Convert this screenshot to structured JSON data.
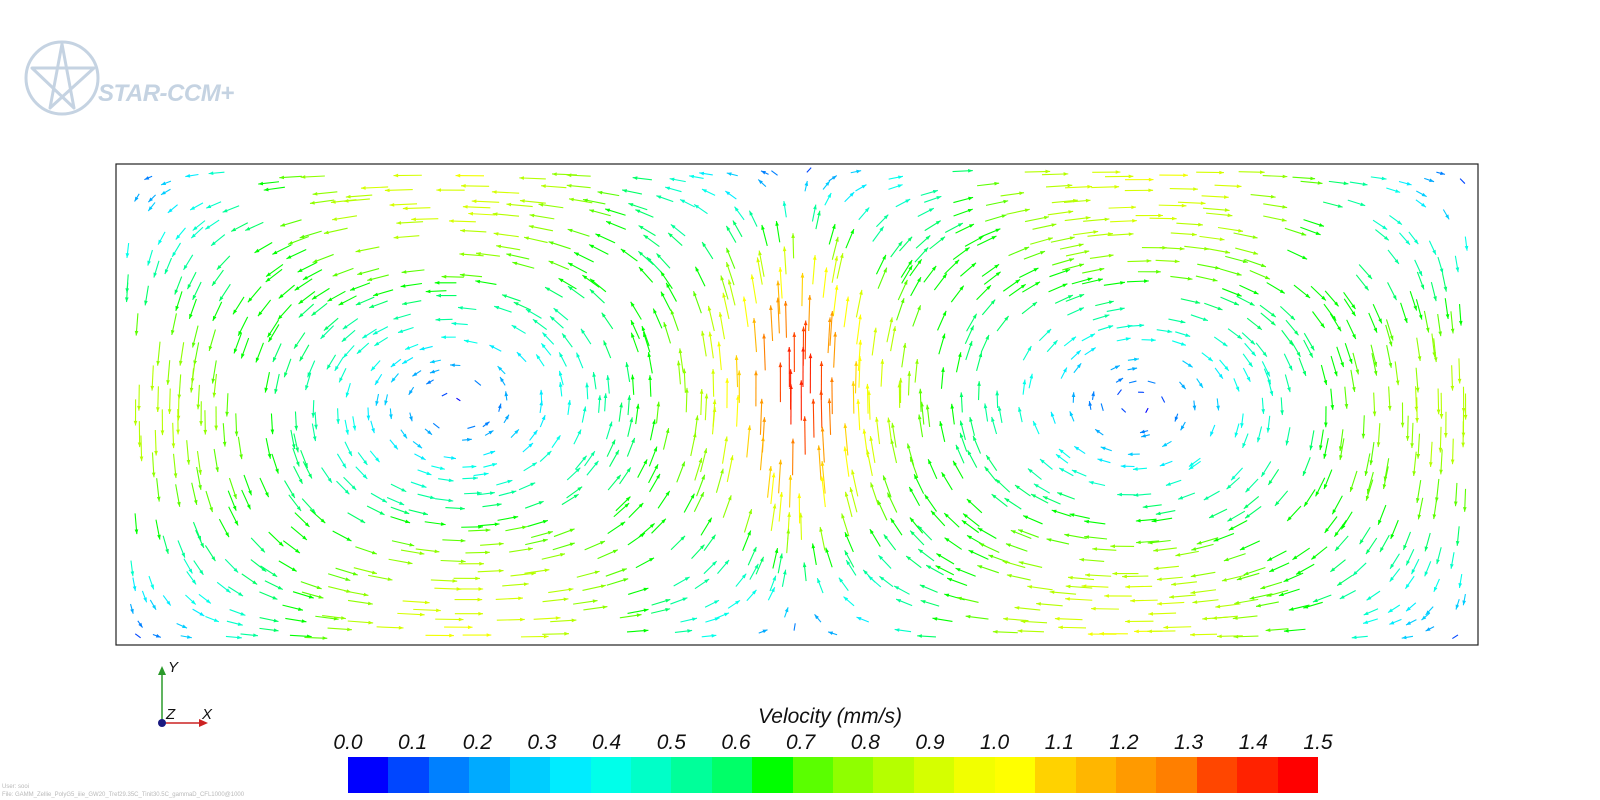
{
  "logo": {
    "text": "STAR-CCM+"
  },
  "triad": {
    "y_label": "Y",
    "z_label": "Z",
    "x_label": "X"
  },
  "legend": {
    "title": "Velocity (mm/s)",
    "ticks": [
      "0.0",
      "0.1",
      "0.2",
      "0.3",
      "0.4",
      "0.5",
      "0.6",
      "0.7",
      "0.8",
      "0.9",
      "1.0",
      "1.1",
      "1.2",
      "1.3",
      "1.4",
      "1.5"
    ],
    "min": 0.0,
    "max": 1.5,
    "colors": [
      "#0000ff",
      "#0046ff",
      "#0080ff",
      "#00aaff",
      "#00cdff",
      "#00ecff",
      "#00ffea",
      "#00ffc8",
      "#00ff9a",
      "#00ff68",
      "#00ff00",
      "#5aff00",
      "#8fff00",
      "#b5ff00",
      "#d5ff00",
      "#f2ff00",
      "#ffff00",
      "#ffd200",
      "#ffb600",
      "#ff9a00",
      "#ff7f00",
      "#ff4600",
      "#ff2200",
      "#ff0000"
    ]
  },
  "footer": {
    "user": "User: sooi",
    "file": "File: GAMM_Zellie_PolyG5_iiie_GW20_Tref29.35C_Tinit30.5C_gammaD_CFL1000@1000"
  },
  "field": {
    "description_colors": "velocity vectors colored by magnitude"
  }
}
